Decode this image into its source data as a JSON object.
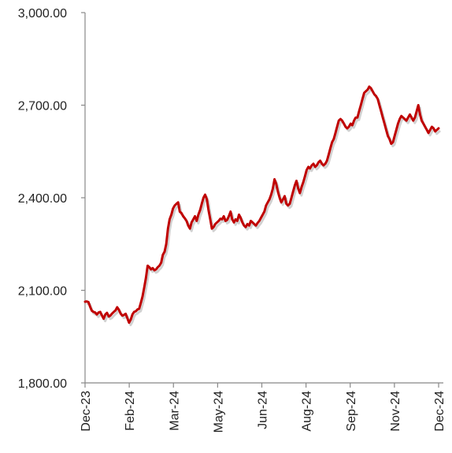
{
  "chart_data": {
    "type": "line",
    "title": "",
    "xlabel": "",
    "ylabel": "",
    "ylim": [
      1800,
      3000
    ],
    "y_ticks": [
      1800,
      2100,
      2400,
      2700,
      3000
    ],
    "y_tick_labels": [
      "1,800.00",
      "2,100.00",
      "2,400.00",
      "2,700.00",
      "3,000.00"
    ],
    "x_tick_labels": [
      "Dec-23",
      "Feb-24",
      "Mar-24",
      "May-24",
      "Jun-24",
      "Aug-24",
      "Sep-24",
      "Nov-24",
      "Dec-24"
    ],
    "grid": false,
    "legend": "none",
    "line_color": "#c00000",
    "series": [
      {
        "x_range": [
          "2023-12-29",
          "2024-12-31"
        ],
        "values": [
          2063,
          2064,
          2062,
          2047,
          2034,
          2030,
          2028,
          2022,
          2028,
          2030,
          2018,
          2008,
          2022,
          2027,
          2015,
          2018,
          2025,
          2030,
          2035,
          2045,
          2037,
          2025,
          2018,
          2020,
          2024,
          2010,
          1995,
          2005,
          2022,
          2030,
          2032,
          2038,
          2040,
          2060,
          2080,
          2110,
          2140,
          2180,
          2175,
          2168,
          2172,
          2165,
          2168,
          2175,
          2180,
          2190,
          2215,
          2225,
          2250,
          2300,
          2330,
          2345,
          2365,
          2375,
          2380,
          2385,
          2355,
          2350,
          2340,
          2333,
          2325,
          2310,
          2300,
          2320,
          2330,
          2340,
          2325,
          2345,
          2360,
          2380,
          2400,
          2410,
          2395,
          2360,
          2330,
          2300,
          2305,
          2315,
          2320,
          2325,
          2332,
          2330,
          2340,
          2325,
          2328,
          2340,
          2355,
          2330,
          2320,
          2330,
          2325,
          2345,
          2335,
          2320,
          2310,
          2305,
          2315,
          2310,
          2325,
          2320,
          2315,
          2310,
          2318,
          2325,
          2335,
          2345,
          2355,
          2375,
          2385,
          2395,
          2410,
          2430,
          2460,
          2445,
          2420,
          2400,
          2385,
          2395,
          2405,
          2380,
          2375,
          2380,
          2400,
          2420,
          2440,
          2455,
          2430,
          2415,
          2435,
          2450,
          2470,
          2490,
          2500,
          2495,
          2505,
          2510,
          2500,
          2505,
          2515,
          2520,
          2510,
          2505,
          2510,
          2520,
          2540,
          2560,
          2580,
          2590,
          2610,
          2630,
          2650,
          2655,
          2650,
          2640,
          2630,
          2625,
          2630,
          2640,
          2635,
          2650,
          2660,
          2660,
          2680,
          2700,
          2720,
          2740,
          2745,
          2750,
          2760,
          2755,
          2745,
          2735,
          2730,
          2720,
          2700,
          2680,
          2660,
          2640,
          2620,
          2600,
          2590,
          2575,
          2580,
          2600,
          2620,
          2640,
          2655,
          2665,
          2660,
          2655,
          2650,
          2660,
          2670,
          2660,
          2650,
          2660,
          2680,
          2700,
          2670,
          2650,
          2640,
          2630,
          2620,
          2610,
          2620,
          2630,
          2625,
          2615,
          2620,
          2625
        ]
      }
    ]
  }
}
